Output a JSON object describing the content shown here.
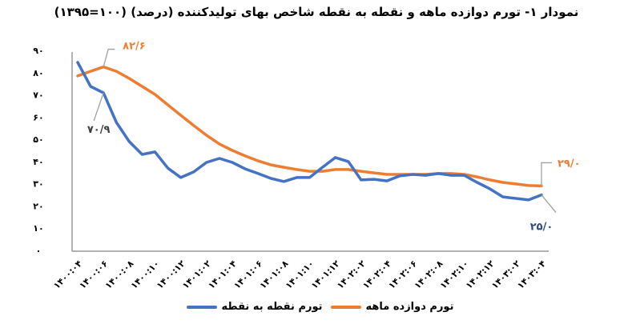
{
  "chart_data": {
    "type": "line",
    "title": "نمودار ۱- تورم دوازده ماهه و نقطه به نقطه شاخص بهای تولیدکننده (درصد) (۱۰۰=۱۳۹۵)",
    "xlabel": "",
    "ylabel": "",
    "ylim": [
      0,
      90
    ],
    "yticks": [
      0,
      10,
      20,
      30,
      40,
      50,
      60,
      70,
      80,
      90
    ],
    "ytick_labels": [
      "۰",
      "۱۰",
      "۲۰",
      "۳۰",
      "۴۰",
      "۵۰",
      "۶۰",
      "۷۰",
      "۸۰",
      "۹۰"
    ],
    "grid": false,
    "legend_position": "bottom",
    "x": [
      "1400:04",
      "1400:05",
      "1400:06",
      "1400:07",
      "1400:08",
      "1400:09",
      "1400:10",
      "1400:11",
      "1400:12",
      "1401:01",
      "1401:02",
      "1401:03",
      "1401:04",
      "1401:05",
      "1401:06",
      "1401:07",
      "1401:08",
      "1401:09",
      "1401:10",
      "1401:11",
      "1401:12",
      "1402:01",
      "1402:02",
      "1402:03",
      "1402:04",
      "1402:05",
      "1402:06",
      "1402:07",
      "1402:08",
      "1402:09",
      "1402:10",
      "1402:11",
      "1402:12",
      "1403:01",
      "1403:02",
      "1403:03",
      "1403:04"
    ],
    "xtick_labels": [
      "۱۴۰۰:۰۴",
      "۱۴۰۰:۰۶",
      "۱۴۰۰:۰۸",
      "۱۴۰۰:۱۰",
      "۱۴۰۰:۱۲",
      "۱۴۰۱:۰۲",
      "۱۴۰۱:۰۴",
      "۱۴۰۱:۰۶",
      "۱۴۰۱:۰۸",
      "۱۴۰۱:۱۰",
      "۱۴۰۱:۱۲",
      "۱۴۰۲:۰۲",
      "۱۴۰۲:۰۴",
      "۱۴۰۲:۰۶",
      "۱۴۰۲:۰۸",
      "۱۴۰۲:۱۰",
      "۱۴۰۲:۱۲",
      "۱۴۰۳:۰۲",
      "۱۴۰۳:۰۴"
    ],
    "series": [
      {
        "name": "تورم نقطه به نقطه",
        "color": "#4472C4",
        "values": [
          84.6,
          73.8,
          70.9,
          57.6,
          49.0,
          43.2,
          44.3,
          37.0,
          32.8,
          35.3,
          39.6,
          41.4,
          39.6,
          36.7,
          34.6,
          32.4,
          31.0,
          32.8,
          32.8,
          37.4,
          41.8,
          40.0,
          31.7,
          32.0,
          31.3,
          33.5,
          34.2,
          33.8,
          34.6,
          33.8,
          33.8,
          30.6,
          27.7,
          24.1,
          23.4,
          22.7,
          25.0
        ]
      },
      {
        "name": "تورم دوازده ماهه",
        "color": "#ED7D31",
        "values": [
          78.5,
          80.6,
          82.6,
          80.6,
          77.4,
          73.8,
          70.2,
          65.5,
          60.8,
          56.2,
          51.8,
          47.9,
          45.0,
          42.5,
          40.3,
          38.5,
          37.4,
          36.4,
          35.6,
          35.6,
          36.4,
          36.4,
          35.6,
          34.9,
          34.2,
          34.2,
          34.2,
          34.2,
          34.6,
          34.6,
          34.2,
          33.1,
          31.7,
          30.6,
          29.9,
          29.2,
          29.0
        ]
      }
    ],
    "annotations": [
      {
        "text": "۸۲/۶",
        "series": "تورم دوازده ماهه",
        "x": "1400:06",
        "value": 82.6,
        "color": "#ED7D31"
      },
      {
        "text": "۷۰/۹",
        "series": "تورم نقطه به نقطه",
        "x": "1400:06",
        "value": 70.9,
        "color": "#404040"
      },
      {
        "text": "۲۹/۰",
        "series": "تورم دوازده ماهه",
        "x": "1403:04",
        "value": 29.0,
        "color": "#ED7D31"
      },
      {
        "text": "۲۵/۰",
        "series": "تورم نقطه به نقطه",
        "x": "1403:04",
        "value": 25.0,
        "color": "#2F4B7C"
      }
    ]
  },
  "legend": {
    "items": [
      {
        "label": "تورم دوازده ماهه",
        "color": "#ED7D31"
      },
      {
        "label": "تورم نقطه به نقطه",
        "color": "#4472C4"
      }
    ]
  }
}
